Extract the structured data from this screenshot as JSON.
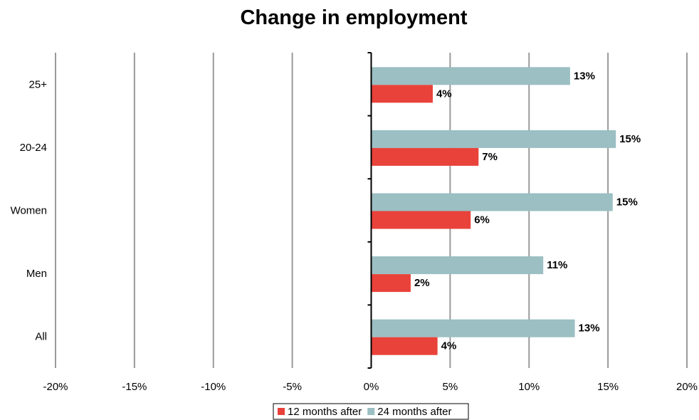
{
  "chart_data": {
    "type": "bar",
    "orientation": "horizontal",
    "title": "Change in employment",
    "categories": [
      "25+",
      "20-24",
      "Women",
      "Men",
      "All"
    ],
    "series": [
      {
        "name": "24 months after",
        "color": "#9bbfc2",
        "values": [
          12.6,
          15.5,
          15.3,
          10.9,
          12.9
        ],
        "labels": [
          "13%",
          "15%",
          "15%",
          "11%",
          "13%"
        ]
      },
      {
        "name": "12 months after",
        "color": "#e8423a",
        "values": [
          3.9,
          6.8,
          6.3,
          2.5,
          4.2
        ],
        "labels": [
          "4%",
          "7%",
          "6%",
          "2%",
          "4%"
        ]
      }
    ],
    "xlim": [
      -20,
      20
    ],
    "xticks": [
      -20,
      -15,
      -10,
      -5,
      0,
      5,
      10,
      15,
      20
    ],
    "xtick_labels": [
      "-20%",
      "-15%",
      "-10%",
      "-5%",
      "0%",
      "5%",
      "10%",
      "15%",
      "20%"
    ],
    "grid": "vertical",
    "legend_position": "bottom"
  },
  "legend": {
    "items": [
      {
        "label": "12 months after",
        "color": "#e8423a"
      },
      {
        "label": "24 months after",
        "color": "#9bbfc2"
      }
    ]
  }
}
